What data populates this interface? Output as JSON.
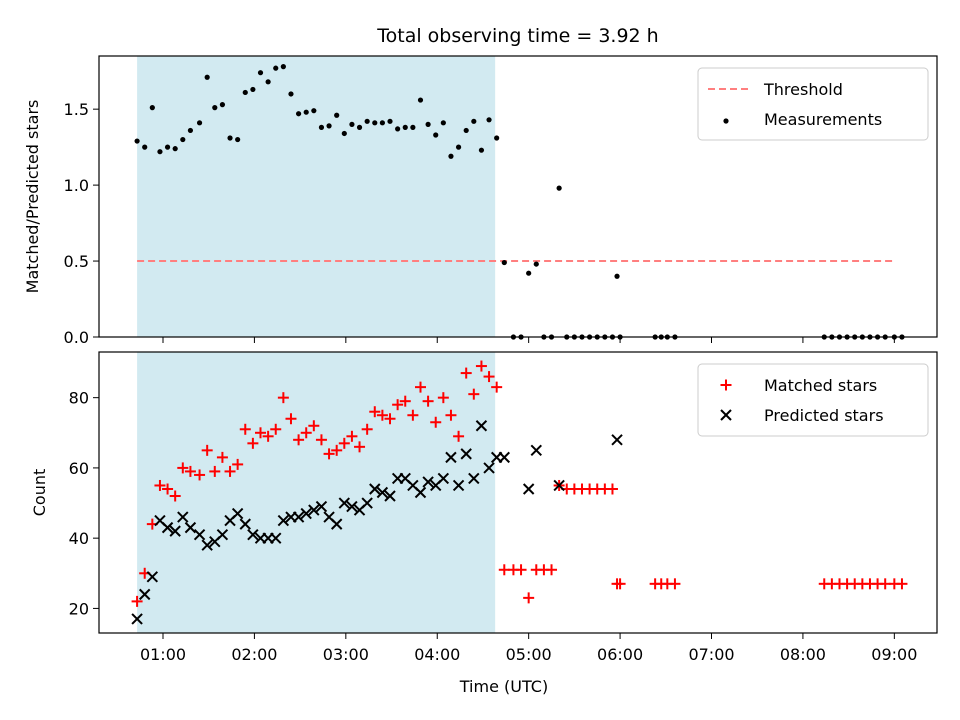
{
  "title": "Total observing time = 3.92 h",
  "colors": {
    "shade": "#add8e6",
    "threshold": "#ff7f7f",
    "matched": "#ff0000",
    "predicted": "#000000",
    "measurements": "#000000"
  },
  "chart_data": [
    {
      "type": "scatter",
      "panel": "top",
      "ylabel": "Matched/Predicted stars",
      "xlabel": "",
      "xlim": [
        "00:18",
        "09:28"
      ],
      "ylim": [
        0.0,
        1.85
      ],
      "yticks": [
        0.0,
        0.5,
        1.0,
        1.5
      ],
      "ytick_labels": [
        "0.0",
        "0.5",
        "1.0",
        "1.5"
      ],
      "shaded_interval": [
        "00:43",
        "04:38"
      ],
      "legend": "top-right",
      "series": [
        {
          "name": "Threshold",
          "style": "dashed-line",
          "x": [
            "00:43",
            "09:00"
          ],
          "y": [
            0.5,
            0.5
          ]
        },
        {
          "name": "Measurements",
          "style": "dots",
          "points": [
            [
              "00:43",
              1.29
            ],
            [
              "00:48",
              1.25
            ],
            [
              "00:53",
              1.51
            ],
            [
              "00:58",
              1.22
            ],
            [
              "01:03",
              1.25
            ],
            [
              "01:08",
              1.24
            ],
            [
              "01:13",
              1.3
            ],
            [
              "01:18",
              1.36
            ],
            [
              "01:24",
              1.41
            ],
            [
              "01:29",
              1.71
            ],
            [
              "01:34",
              1.51
            ],
            [
              "01:39",
              1.53
            ],
            [
              "01:44",
              1.31
            ],
            [
              "01:49",
              1.3
            ],
            [
              "01:54",
              1.61
            ],
            [
              "01:59",
              1.63
            ],
            [
              "02:04",
              1.74
            ],
            [
              "02:09",
              1.68
            ],
            [
              "02:14",
              1.77
            ],
            [
              "02:19",
              1.78
            ],
            [
              "02:24",
              1.6
            ],
            [
              "02:29",
              1.47
            ],
            [
              "02:34",
              1.48
            ],
            [
              "02:39",
              1.49
            ],
            [
              "02:44",
              1.38
            ],
            [
              "02:49",
              1.39
            ],
            [
              "02:54",
              1.46
            ],
            [
              "02:59",
              1.34
            ],
            [
              "03:04",
              1.4
            ],
            [
              "03:09",
              1.38
            ],
            [
              "03:14",
              1.42
            ],
            [
              "03:19",
              1.41
            ],
            [
              "03:24",
              1.41
            ],
            [
              "03:29",
              1.42
            ],
            [
              "03:34",
              1.37
            ],
            [
              "03:39",
              1.38
            ],
            [
              "03:44",
              1.38
            ],
            [
              "03:49",
              1.56
            ],
            [
              "03:54",
              1.4
            ],
            [
              "03:59",
              1.33
            ],
            [
              "04:04",
              1.41
            ],
            [
              "04:09",
              1.19
            ],
            [
              "04:14",
              1.25
            ],
            [
              "04:19",
              1.36
            ],
            [
              "04:24",
              1.42
            ],
            [
              "04:29",
              1.23
            ],
            [
              "04:34",
              1.43
            ],
            [
              "04:39",
              1.31
            ],
            [
              "04:44",
              0.49
            ],
            [
              "04:50",
              0.0
            ],
            [
              "04:55",
              0.0
            ],
            [
              "05:00",
              0.42
            ],
            [
              "05:05",
              0.48
            ],
            [
              "05:10",
              0.0
            ],
            [
              "05:15",
              0.0
            ],
            [
              "05:20",
              0.98
            ],
            [
              "05:25",
              0.0
            ],
            [
              "05:30",
              0.0
            ],
            [
              "05:35",
              0.0
            ],
            [
              "05:40",
              0.0
            ],
            [
              "05:45",
              0.0
            ],
            [
              "05:50",
              0.0
            ],
            [
              "05:55",
              0.0
            ],
            [
              "05:58",
              0.4
            ],
            [
              "06:00",
              0.0
            ],
            [
              "06:23",
              0.0
            ],
            [
              "06:27",
              0.0
            ],
            [
              "06:31",
              0.0
            ],
            [
              "06:36",
              0.0
            ],
            [
              "08:14",
              0.0
            ],
            [
              "08:19",
              0.0
            ],
            [
              "08:24",
              0.0
            ],
            [
              "08:29",
              0.0
            ],
            [
              "08:34",
              0.0
            ],
            [
              "08:39",
              0.0
            ],
            [
              "08:44",
              0.0
            ],
            [
              "08:49",
              0.0
            ],
            [
              "08:54",
              0.0
            ],
            [
              "09:00",
              0.0
            ],
            [
              "09:05",
              0.0
            ]
          ]
        }
      ]
    },
    {
      "type": "scatter",
      "panel": "bottom",
      "ylabel": "Count",
      "xlabel": "Time (UTC)",
      "xlim": [
        "00:18",
        "09:28"
      ],
      "ylim": [
        13,
        93
      ],
      "yticks": [
        20,
        40,
        60,
        80
      ],
      "ytick_labels": [
        "20",
        "40",
        "60",
        "80"
      ],
      "xticks": [
        "01:00",
        "02:00",
        "03:00",
        "04:00",
        "05:00",
        "06:00",
        "07:00",
        "08:00",
        "09:00"
      ],
      "shaded_interval": [
        "00:43",
        "04:38"
      ],
      "legend": "top-right",
      "series": [
        {
          "name": "Matched stars",
          "style": "plus",
          "points": [
            [
              "00:43",
              22
            ],
            [
              "00:48",
              30
            ],
            [
              "00:53",
              44
            ],
            [
              "00:58",
              55
            ],
            [
              "01:03",
              54
            ],
            [
              "01:08",
              52
            ],
            [
              "01:13",
              60
            ],
            [
              "01:18",
              59
            ],
            [
              "01:24",
              58
            ],
            [
              "01:29",
              65
            ],
            [
              "01:34",
              59
            ],
            [
              "01:39",
              63
            ],
            [
              "01:44",
              59
            ],
            [
              "01:49",
              61
            ],
            [
              "01:54",
              71
            ],
            [
              "01:59",
              67
            ],
            [
              "02:04",
              70
            ],
            [
              "02:09",
              69
            ],
            [
              "02:14",
              71
            ],
            [
              "02:19",
              80
            ],
            [
              "02:24",
              74
            ],
            [
              "02:29",
              68
            ],
            [
              "02:34",
              70
            ],
            [
              "02:39",
              72
            ],
            [
              "02:44",
              68
            ],
            [
              "02:49",
              64
            ],
            [
              "02:54",
              65
            ],
            [
              "02:59",
              67
            ],
            [
              "03:04",
              69
            ],
            [
              "03:09",
              66
            ],
            [
              "03:14",
              71
            ],
            [
              "03:19",
              76
            ],
            [
              "03:24",
              75
            ],
            [
              "03:29",
              74
            ],
            [
              "03:34",
              78
            ],
            [
              "03:39",
              79
            ],
            [
              "03:44",
              75
            ],
            [
              "03:49",
              83
            ],
            [
              "03:54",
              79
            ],
            [
              "03:59",
              73
            ],
            [
              "04:04",
              80
            ],
            [
              "04:09",
              75
            ],
            [
              "04:14",
              69
            ],
            [
              "04:19",
              87
            ],
            [
              "04:24",
              81
            ],
            [
              "04:29",
              89
            ],
            [
              "04:34",
              86
            ],
            [
              "04:39",
              83
            ],
            [
              "04:44",
              31
            ],
            [
              "04:50",
              31
            ],
            [
              "04:55",
              31
            ],
            [
              "05:00",
              23
            ],
            [
              "05:05",
              31
            ],
            [
              "05:10",
              31
            ],
            [
              "05:15",
              31
            ],
            [
              "05:20",
              55
            ],
            [
              "05:25",
              54
            ],
            [
              "05:30",
              54
            ],
            [
              "05:35",
              54
            ],
            [
              "05:40",
              54
            ],
            [
              "05:45",
              54
            ],
            [
              "05:50",
              54
            ],
            [
              "05:55",
              54
            ],
            [
              "05:58",
              27
            ],
            [
              "06:00",
              27
            ],
            [
              "06:23",
              27
            ],
            [
              "06:27",
              27
            ],
            [
              "06:31",
              27
            ],
            [
              "06:36",
              27
            ],
            [
              "08:14",
              27
            ],
            [
              "08:19",
              27
            ],
            [
              "08:24",
              27
            ],
            [
              "08:29",
              27
            ],
            [
              "08:34",
              27
            ],
            [
              "08:39",
              27
            ],
            [
              "08:44",
              27
            ],
            [
              "08:49",
              27
            ],
            [
              "08:54",
              27
            ],
            [
              "09:00",
              27
            ],
            [
              "09:05",
              27
            ]
          ]
        },
        {
          "name": "Predicted stars",
          "style": "x",
          "points": [
            [
              "00:43",
              17
            ],
            [
              "00:48",
              24
            ],
            [
              "00:53",
              29
            ],
            [
              "00:58",
              45
            ],
            [
              "01:03",
              43
            ],
            [
              "01:08",
              42
            ],
            [
              "01:13",
              46
            ],
            [
              "01:18",
              43
            ],
            [
              "01:24",
              41
            ],
            [
              "01:29",
              38
            ],
            [
              "01:34",
              39
            ],
            [
              "01:39",
              41
            ],
            [
              "01:44",
              45
            ],
            [
              "01:49",
              47
            ],
            [
              "01:54",
              44
            ],
            [
              "01:59",
              41
            ],
            [
              "02:04",
              40
            ],
            [
              "02:09",
              40
            ],
            [
              "02:14",
              40
            ],
            [
              "02:19",
              45
            ],
            [
              "02:24",
              46
            ],
            [
              "02:29",
              46
            ],
            [
              "02:34",
              47
            ],
            [
              "02:39",
              48
            ],
            [
              "02:44",
              49
            ],
            [
              "02:49",
              46
            ],
            [
              "02:54",
              44
            ],
            [
              "02:59",
              50
            ],
            [
              "03:04",
              49
            ],
            [
              "03:09",
              48
            ],
            [
              "03:14",
              50
            ],
            [
              "03:19",
              54
            ],
            [
              "03:24",
              53
            ],
            [
              "03:29",
              52
            ],
            [
              "03:34",
              57
            ],
            [
              "03:39",
              57
            ],
            [
              "03:44",
              55
            ],
            [
              "03:49",
              53
            ],
            [
              "03:54",
              56
            ],
            [
              "03:59",
              55
            ],
            [
              "04:04",
              57
            ],
            [
              "04:09",
              63
            ],
            [
              "04:14",
              55
            ],
            [
              "04:19",
              64
            ],
            [
              "04:24",
              57
            ],
            [
              "04:29",
              72
            ],
            [
              "04:34",
              60
            ],
            [
              "04:39",
              63
            ],
            [
              "04:44",
              63
            ],
            [
              "05:00",
              54
            ],
            [
              "05:05",
              65
            ],
            [
              "05:20",
              55
            ],
            [
              "05:58",
              68
            ]
          ]
        }
      ]
    }
  ]
}
